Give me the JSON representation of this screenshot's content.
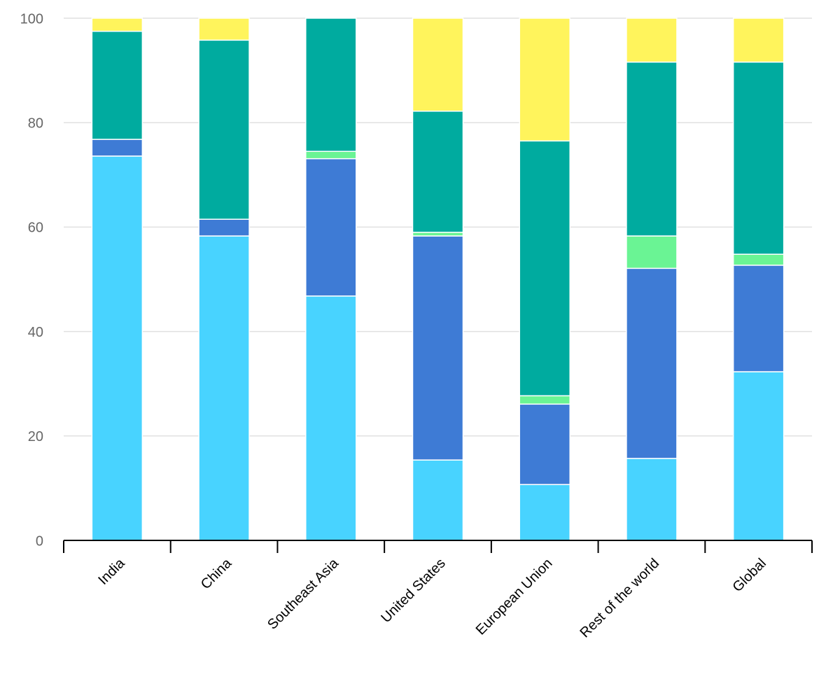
{
  "chart_data": {
    "type": "stacked-bar",
    "categories": [
      "India",
      "China",
      "Southeast Asia",
      "United States",
      "European Union",
      "Rest of the world",
      "Global"
    ],
    "series": [
      {
        "color": "#48d3ff",
        "values": [
          73.6,
          58.3,
          46.8,
          15.4,
          10.7,
          15.7,
          32.3
        ]
      },
      {
        "color": "#3e7bd5",
        "values": [
          3.2,
          3.2,
          26.3,
          42.9,
          15.4,
          36.4,
          20.4
        ]
      },
      {
        "color": "#6af494",
        "values": [
          0,
          0,
          1.4,
          0.7,
          1.6,
          6.2,
          2.1
        ]
      },
      {
        "color": "#00ab9f",
        "values": [
          20.7,
          34.3,
          25.5,
          23.2,
          48.8,
          33.3,
          36.8
        ]
      },
      {
        "color": "#fff45c",
        "values": [
          2.5,
          4.2,
          0,
          17.8,
          23.5,
          8.4,
          8.4
        ]
      }
    ],
    "ylim": [
      0,
      100
    ],
    "yticks": [
      0,
      20,
      40,
      60,
      80,
      100
    ],
    "grid": true
  }
}
